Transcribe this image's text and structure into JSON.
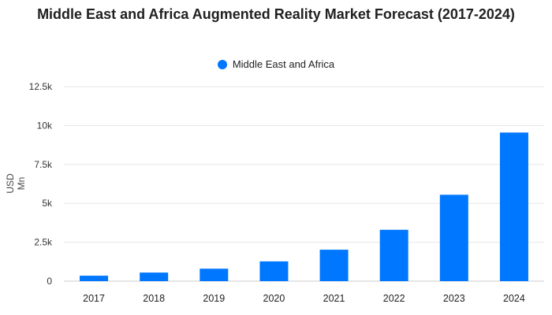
{
  "chart_data": {
    "type": "bar",
    "title": "Middle East and Africa Augmented Reality Market Forecast (2017-2024)",
    "ylabel": "USD Mn",
    "xlabel": "",
    "categories": [
      "2017",
      "2018",
      "2019",
      "2020",
      "2021",
      "2022",
      "2023",
      "2024"
    ],
    "series": [
      {
        "name": "Middle East and Africa",
        "values": [
          350,
          550,
          800,
          1270,
          2020,
          3300,
          5550,
          9550
        ],
        "color": "#0077ff"
      }
    ],
    "ylim": [
      0,
      12500
    ],
    "yticks": [
      0,
      2500,
      5000,
      7500,
      10000,
      12500
    ],
    "ytick_labels": [
      "0",
      "2.5k",
      "5k",
      "7.5k",
      "10k",
      "12.5k"
    ],
    "grid": true,
    "legend_position": "top-center"
  }
}
